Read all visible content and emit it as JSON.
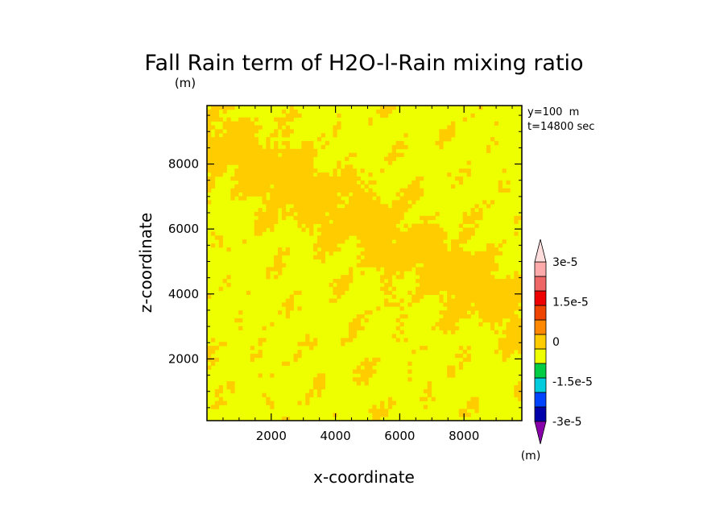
{
  "chart_data": {
    "type": "heatmap",
    "title": "Fall Rain term of H2O-l-Rain mixing ratio",
    "title_unit": "(m)",
    "xlabel": "x-coordinate",
    "ylabel": "z-coordinate",
    "xlim": [
      0,
      9800
    ],
    "ylim": [
      100,
      9800
    ],
    "xticks": [
      2000,
      4000,
      6000,
      8000
    ],
    "yticks": [
      2000,
      4000,
      6000,
      8000
    ],
    "xtick_labels": [
      "2000",
      "4000",
      "6000",
      "8000"
    ],
    "ytick_labels": [
      "2000",
      "4000",
      "6000",
      "8000"
    ],
    "annotations": [
      "y=100  m",
      "t=14800 sec"
    ],
    "colorbar": {
      "levels": [
        -3e-05,
        -2.25e-05,
        -1.5e-05,
        -7.5e-06,
        0,
        7.5e-06,
        1.5e-05,
        2.25e-05,
        3e-05
      ],
      "tick_labels": [
        "3e-5",
        "1.5e-5",
        "0",
        "-1.5e-5",
        "-3e-5"
      ],
      "tick_values": [
        3e-05,
        1.5e-05,
        0,
        -1.5e-05,
        -3e-05
      ],
      "unit": "(m)",
      "colors_low_to_high": [
        "#8800aa",
        "#0000aa",
        "#0044ff",
        "#00ccdd",
        "#00cc44",
        "#eeff00",
        "#ffcc00",
        "#ff8800",
        "#ee4400",
        "#ee0000",
        "#ee6666",
        "#ffaaaa",
        "#ffdddd"
      ]
    },
    "field_summary": "Values lie between -7.5e-6 and 7.5e-6; a broad diagonal band of slightly positive values (orange) runs from upper-left to lower-right, with patchy positive streaks elsewhere on a near-zero (yellow) background.",
    "value_range_shown": [
      -7.5e-06,
      7.5e-06
    ],
    "field_colors": {
      "near_zero_negative": "#eeff00",
      "near_zero_positive": "#ffcc00"
    }
  }
}
